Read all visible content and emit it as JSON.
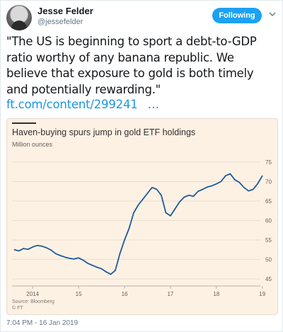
{
  "tweet": {
    "author_name": "Jesse Felder",
    "handle": "@jessefelder",
    "follow_label": "Following",
    "text": "\"The US is beginning to sport a debt-to-GDP ratio worthy of any banana republic. We believe that exposure to gold is both timely and potentially rewarding.\"",
    "link_text": "ft.com/content/299241",
    "link_ellipsis": "…",
    "timestamp": "7:04 PM - 16 Jan 2019"
  },
  "colors": {
    "accent": "#1da1f2",
    "link": "#1b95e0",
    "chart_bg": "#fdf1e4",
    "line": "#1f5b99"
  },
  "icons": {
    "avatar": "avatar",
    "menu": "chevron-down-icon"
  },
  "chart_data": {
    "type": "line",
    "title": "Haven-buying spurs jump in gold ETF holdings",
    "ylabel": "Million ounces",
    "source": "Source: Bloomberg",
    "copyright": "© FT",
    "ylim": [
      45,
      75
    ],
    "yticks": [
      45,
      50,
      55,
      60,
      65,
      70,
      75
    ],
    "xlim": [
      2013.55,
      2019.05
    ],
    "xticks": [
      {
        "value": 2014,
        "label": "2014"
      },
      {
        "value": 2015,
        "label": "15"
      },
      {
        "value": 2016,
        "label": "16"
      },
      {
        "value": 2017,
        "label": "17"
      },
      {
        "value": 2018,
        "label": "18"
      },
      {
        "value": 2019,
        "label": "19"
      }
    ],
    "grid": true,
    "series": [
      {
        "values": [
          [
            2013.6,
            52.5
          ],
          [
            2013.7,
            52.2
          ],
          [
            2013.8,
            52.8
          ],
          [
            2013.9,
            52.6
          ],
          [
            2014.0,
            53.2
          ],
          [
            2014.1,
            53.6
          ],
          [
            2014.2,
            53.4
          ],
          [
            2014.3,
            53.0
          ],
          [
            2014.4,
            52.4
          ],
          [
            2014.5,
            51.5
          ],
          [
            2014.6,
            51.0
          ],
          [
            2014.7,
            50.6
          ],
          [
            2014.8,
            50.3
          ],
          [
            2014.9,
            50.1
          ],
          [
            2015.0,
            50.4
          ],
          [
            2015.1,
            49.8
          ],
          [
            2015.2,
            49.0
          ],
          [
            2015.3,
            48.5
          ],
          [
            2015.4,
            48.0
          ],
          [
            2015.5,
            47.6
          ],
          [
            2015.6,
            46.8
          ],
          [
            2015.7,
            46.2
          ],
          [
            2015.8,
            47.2
          ],
          [
            2015.9,
            51.5
          ],
          [
            2016.0,
            55.0
          ],
          [
            2016.1,
            58.0
          ],
          [
            2016.2,
            62.0
          ],
          [
            2016.3,
            64.0
          ],
          [
            2016.4,
            65.5
          ],
          [
            2016.5,
            67.0
          ],
          [
            2016.6,
            68.5
          ],
          [
            2016.7,
            68.0
          ],
          [
            2016.8,
            66.5
          ],
          [
            2016.9,
            62.0
          ],
          [
            2017.0,
            61.2
          ],
          [
            2017.1,
            63.0
          ],
          [
            2017.2,
            64.8
          ],
          [
            2017.3,
            66.0
          ],
          [
            2017.4,
            66.5
          ],
          [
            2017.5,
            66.2
          ],
          [
            2017.6,
            67.5
          ],
          [
            2017.7,
            68.0
          ],
          [
            2017.8,
            68.6
          ],
          [
            2017.9,
            68.9
          ],
          [
            2018.0,
            69.4
          ],
          [
            2018.1,
            70.0
          ],
          [
            2018.2,
            71.5
          ],
          [
            2018.3,
            72.0
          ],
          [
            2018.4,
            70.5
          ],
          [
            2018.5,
            69.8
          ],
          [
            2018.6,
            68.5
          ],
          [
            2018.7,
            67.6
          ],
          [
            2018.8,
            68.0
          ],
          [
            2018.9,
            69.5
          ],
          [
            2019.0,
            71.5
          ]
        ]
      }
    ]
  }
}
